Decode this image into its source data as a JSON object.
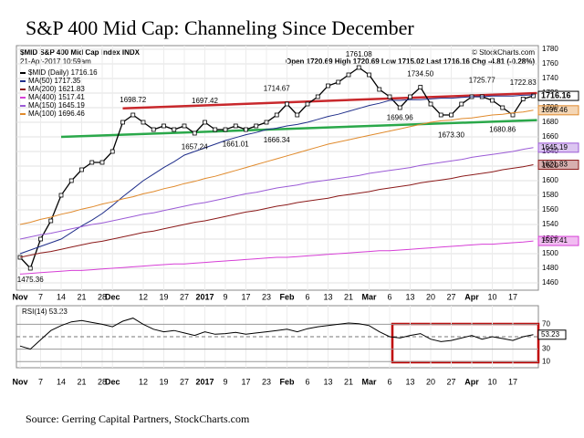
{
  "chart_data": {
    "type": "line",
    "title": "S&P 400 Mid Cap: Channeling Since December",
    "symbol_line": "$MID S&P 400 Mid Cap Index INDX",
    "copyright": "© StockCharts.com",
    "timestamp": "21-Apr-2017 10:59am",
    "quote": "Open 1720.69 High 1720.69 Low 1715.02 Last 1716.16 Chg -4.81 (-0.28%)",
    "source": "Source: Gerring Capital Partners, StockCharts.com",
    "categories": [
      "Nov",
      null,
      "7",
      null,
      "14",
      null,
      "21",
      null,
      "28",
      "Dec",
      null,
      null,
      "12",
      null,
      "19",
      null,
      "27",
      null,
      "2017",
      null,
      "9",
      null,
      "17",
      null,
      "23",
      null,
      "Feb",
      null,
      "6",
      null,
      "13",
      null,
      "21",
      null,
      "Mar",
      null,
      "6",
      null,
      "13",
      null,
      "20",
      null,
      "27",
      null,
      "Apr",
      null,
      "10",
      null,
      "17",
      null,
      null
    ],
    "ylim": [
      1450,
      1785
    ],
    "yticks": [
      1460,
      1480,
      1500,
      1520,
      1540,
      1560,
      1580,
      1600,
      1620,
      1640,
      1660,
      1680,
      1700,
      1720,
      1740,
      1760,
      1780
    ],
    "grid": true,
    "series": [
      {
        "name": "$MID (Daily) 1716.16",
        "color": "#000000",
        "tag": true,
        "values": [
          1495,
          1480,
          1520,
          1545,
          1580,
          1600,
          1615,
          1625,
          1625,
          1640,
          1680,
          1690,
          1680,
          1670,
          1675,
          1670,
          1675,
          1665,
          1680,
          1670,
          1670,
          1675,
          1670,
          1675,
          1680,
          1690,
          1705,
          1690,
          1705,
          1715,
          1730,
          1735,
          1745,
          1755,
          1745,
          1725,
          1715,
          1700,
          1715,
          1728,
          1705,
          1690,
          1690,
          1705,
          1715,
          1715,
          1710,
          1700,
          1690,
          1712,
          1716.16
        ]
      },
      {
        "name": "MA(50) 1717.35",
        "color": "#1f2e8a",
        "tag": false,
        "values": [
          1500,
          1505,
          1510,
          1515,
          1520,
          1529,
          1538,
          1546,
          1555,
          1566,
          1578,
          1589,
          1600,
          1609,
          1618,
          1626,
          1635,
          1640,
          1645,
          1650,
          1655,
          1659,
          1663,
          1666,
          1670,
          1672,
          1675,
          1677,
          1680,
          1684,
          1688,
          1691,
          1695,
          1699,
          1703,
          1706,
          1710,
          1710,
          1711,
          1711,
          1712,
          1713,
          1713,
          1714,
          1715,
          1715,
          1716,
          1716,
          1716,
          1717,
          1717.35
        ]
      },
      {
        "name": "MA(200) 1621.83",
        "color": "#8b1a1a",
        "tag": true,
        "values": [
          1495,
          1498,
          1501,
          1503,
          1506,
          1509,
          1512,
          1515,
          1517,
          1520,
          1523,
          1526,
          1529,
          1531,
          1534,
          1537,
          1540,
          1543,
          1545,
          1548,
          1551,
          1554,
          1557,
          1559,
          1562,
          1565,
          1567,
          1570,
          1572,
          1574,
          1576,
          1579,
          1581,
          1583,
          1585,
          1588,
          1590,
          1592,
          1594,
          1597,
          1599,
          1601,
          1603,
          1606,
          1608,
          1610,
          1612,
          1615,
          1617,
          1619,
          1621.83
        ]
      },
      {
        "name": "MA(400) 1517.41",
        "color": "#d63fd6",
        "tag": true,
        "values": [
          1472,
          1473,
          1474,
          1475,
          1476,
          1477,
          1477,
          1478,
          1479,
          1480,
          1481,
          1482,
          1483,
          1484,
          1485,
          1486,
          1486,
          1487,
          1488,
          1489,
          1490,
          1491,
          1492,
          1493,
          1494,
          1495,
          1495,
          1496,
          1497,
          1498,
          1499,
          1500,
          1501,
          1502,
          1503,
          1504,
          1504,
          1505,
          1506,
          1507,
          1508,
          1509,
          1510,
          1511,
          1512,
          1513,
          1513,
          1514,
          1515,
          1516,
          1517.41
        ]
      },
      {
        "name": "MA(150) 1645.19",
        "color": "#9b5bd6",
        "tag": true,
        "values": [
          1520,
          1523,
          1526,
          1528,
          1531,
          1534,
          1537,
          1540,
          1542,
          1545,
          1548,
          1551,
          1554,
          1556,
          1559,
          1562,
          1565,
          1568,
          1570,
          1573,
          1576,
          1579,
          1582,
          1584,
          1587,
          1590,
          1592,
          1594,
          1597,
          1599,
          1601,
          1603,
          1605,
          1607,
          1610,
          1612,
          1614,
          1616,
          1618,
          1621,
          1623,
          1625,
          1627,
          1629,
          1632,
          1634,
          1636,
          1638,
          1640,
          1643,
          1645.19
        ]
      },
      {
        "name": "MA(100) 1696.46",
        "color": "#e08a2c",
        "tag": true,
        "values": [
          1540,
          1543,
          1547,
          1550,
          1554,
          1557,
          1561,
          1564,
          1568,
          1571,
          1575,
          1578,
          1582,
          1585,
          1589,
          1592,
          1596,
          1599,
          1603,
          1606,
          1610,
          1614,
          1618,
          1622,
          1626,
          1630,
          1634,
          1638,
          1642,
          1646,
          1650,
          1653,
          1656,
          1659,
          1662,
          1665,
          1668,
          1671,
          1674,
          1677,
          1680,
          1682,
          1683,
          1685,
          1686,
          1688,
          1690,
          1691,
          1693,
          1694,
          1696.46
        ]
      }
    ],
    "trendlines": [
      {
        "color": "#c8282c",
        "values": [
          1699,
          1720
        ]
      },
      {
        "color": "#2aa84a",
        "values": [
          1660,
          1683
        ]
      }
    ],
    "annotations": [
      {
        "value": 1475.36,
        "label": "1475.36"
      },
      {
        "value": 1698.72,
        "label": "1698.72"
      },
      {
        "value": 1697.42,
        "label": "1697.42"
      },
      {
        "value": 1714.67,
        "label": "1714.67"
      },
      {
        "value": 1761.08,
        "label": "1761.08"
      },
      {
        "value": 1734.5,
        "label": "1734.50"
      },
      {
        "value": 1725.77,
        "label": "1725.77"
      },
      {
        "value": 1722.83,
        "label": "1722.83"
      },
      {
        "value": 1657.24,
        "label": "1657.24"
      },
      {
        "value": 1661.01,
        "label": "1661.01"
      },
      {
        "value": 1666.34,
        "label": "1666.34"
      },
      {
        "value": 1696.96,
        "label": "1696.96"
      },
      {
        "value": 1673.3,
        "label": "1673.30"
      },
      {
        "value": 1680.86,
        "label": "1680.86"
      }
    ],
    "rsi": {
      "name": "RSI(14) 53.23",
      "color": "#000000",
      "ylim": [
        0,
        100
      ],
      "yticks": [
        10,
        30,
        70
      ],
      "midline": 50,
      "values": [
        35,
        30,
        45,
        60,
        68,
        74,
        76,
        73,
        70,
        66,
        75,
        80,
        70,
        62,
        58,
        60,
        56,
        52,
        58,
        54,
        55,
        57,
        54,
        56,
        58,
        60,
        62,
        58,
        63,
        66,
        68,
        70,
        72,
        71,
        68,
        58,
        50,
        48,
        52,
        55,
        46,
        42,
        44,
        48,
        52,
        46,
        50,
        47,
        44,
        50,
        53.23
      ]
    }
  }
}
